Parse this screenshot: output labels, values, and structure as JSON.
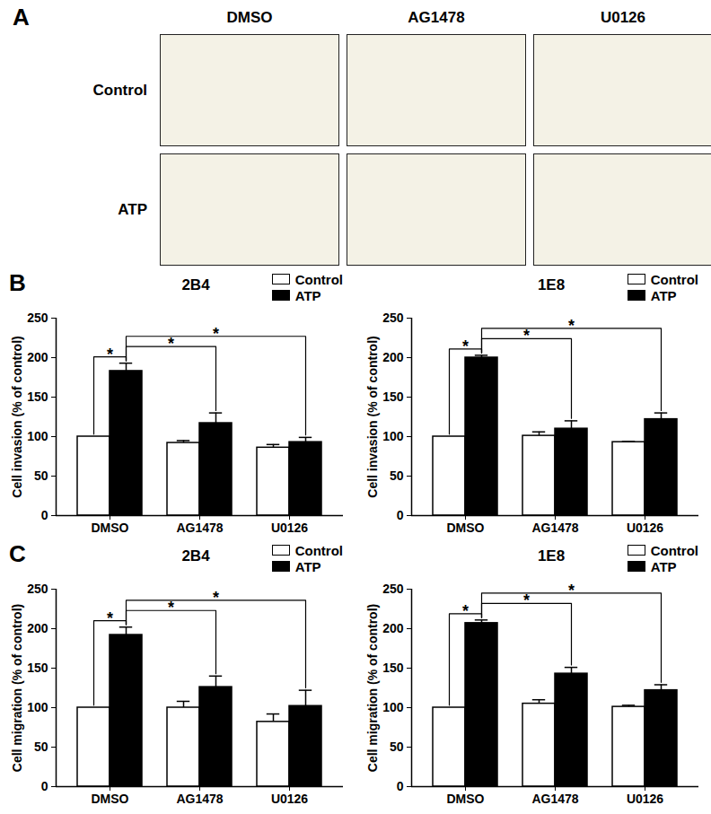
{
  "image_grid": {
    "panel": "A",
    "columns": [
      "DMSO",
      "AG1478",
      "U0126"
    ],
    "rows": [
      "Control",
      "ATP"
    ]
  },
  "chart_data": [
    {
      "panel": "B",
      "type": "bar",
      "title": "2B4",
      "y_label": "Cell invasion (% of control)",
      "categories": [
        "DMSO",
        "AG1478",
        "U0126"
      ],
      "series": [
        {
          "name": "Control",
          "color": "#ffffff",
          "values": [
            100,
            92,
            86
          ],
          "errors": [
            0,
            3,
            4
          ]
        },
        {
          "name": "ATP",
          "color": "#000000",
          "values": [
            183,
            117,
            93
          ],
          "errors": [
            10,
            13,
            6
          ]
        }
      ],
      "ylim": [
        0,
        250
      ],
      "yticks": [
        0,
        50,
        100,
        150,
        200,
        250
      ],
      "legend": "top-right",
      "annotations": [
        {
          "label": "*",
          "between": [
            [
              "DMSO",
              "Control"
            ],
            [
              "DMSO",
              "ATP"
            ]
          ]
        },
        {
          "label": "*",
          "between": [
            [
              "DMSO",
              "ATP"
            ],
            [
              "AG1478",
              "ATP"
            ]
          ]
        },
        {
          "label": "*",
          "between": [
            [
              "DMSO",
              "ATP"
            ],
            [
              "U0126",
              "ATP"
            ]
          ]
        }
      ]
    },
    {
      "type": "bar",
      "title": "1E8",
      "y_label": "Cell invasion (% of control)",
      "categories": [
        "DMSO",
        "AG1478",
        "U0126"
      ],
      "series": [
        {
          "name": "Control",
          "color": "#ffffff",
          "values": [
            100,
            101,
            93
          ],
          "errors": [
            0,
            5,
            1
          ]
        },
        {
          "name": "ATP",
          "color": "#000000",
          "values": [
            200,
            110,
            122
          ],
          "errors": [
            3,
            10,
            8
          ]
        }
      ],
      "ylim": [
        0,
        250
      ],
      "yticks": [
        0,
        50,
        100,
        150,
        200,
        250
      ],
      "legend": "top-right",
      "annotations": [
        {
          "label": "*",
          "between": [
            [
              "DMSO",
              "Control"
            ],
            [
              "DMSO",
              "ATP"
            ]
          ]
        },
        {
          "label": "*",
          "between": [
            [
              "DMSO",
              "ATP"
            ],
            [
              "AG1478",
              "ATP"
            ]
          ]
        },
        {
          "label": "*",
          "between": [
            [
              "DMSO",
              "ATP"
            ],
            [
              "U0126",
              "ATP"
            ]
          ]
        }
      ]
    },
    {
      "panel": "C",
      "type": "bar",
      "title": "2B4",
      "y_label": "Cell migration (% of control)",
      "categories": [
        "DMSO",
        "AG1478",
        "U0126"
      ],
      "series": [
        {
          "name": "Control",
          "color": "#ffffff",
          "values": [
            100,
            100,
            82
          ],
          "errors": [
            0,
            8,
            10
          ]
        },
        {
          "name": "ATP",
          "color": "#000000",
          "values": [
            192,
            126,
            102
          ],
          "errors": [
            10,
            14,
            20
          ]
        }
      ],
      "ylim": [
        0,
        250
      ],
      "yticks": [
        0,
        50,
        100,
        150,
        200,
        250
      ],
      "legend": "top-right",
      "annotations": [
        {
          "label": "*",
          "between": [
            [
              "DMSO",
              "Control"
            ],
            [
              "DMSO",
              "ATP"
            ]
          ]
        },
        {
          "label": "*",
          "between": [
            [
              "DMSO",
              "ATP"
            ],
            [
              "AG1478",
              "ATP"
            ]
          ]
        },
        {
          "label": "*",
          "between": [
            [
              "DMSO",
              "ATP"
            ],
            [
              "U0126",
              "ATP"
            ]
          ]
        }
      ]
    },
    {
      "type": "bar",
      "title": "1E8",
      "y_label": "Cell migration (% of control)",
      "categories": [
        "DMSO",
        "AG1478",
        "U0126"
      ],
      "series": [
        {
          "name": "Control",
          "color": "#ffffff",
          "values": [
            100,
            105,
            101
          ],
          "errors": [
            0,
            5,
            2
          ]
        },
        {
          "name": "ATP",
          "color": "#000000",
          "values": [
            207,
            143,
            122
          ],
          "errors": [
            4,
            8,
            7
          ]
        }
      ],
      "ylim": [
        0,
        250
      ],
      "yticks": [
        0,
        50,
        100,
        150,
        200,
        250
      ],
      "legend": "top-right",
      "annotations": [
        {
          "label": "*",
          "between": [
            [
              "DMSO",
              "Control"
            ],
            [
              "DMSO",
              "ATP"
            ]
          ]
        },
        {
          "label": "*",
          "between": [
            [
              "DMSO",
              "ATP"
            ],
            [
              "AG1478",
              "ATP"
            ]
          ]
        },
        {
          "label": "*",
          "between": [
            [
              "DMSO",
              "ATP"
            ],
            [
              "U0126",
              "ATP"
            ]
          ]
        }
      ]
    }
  ]
}
